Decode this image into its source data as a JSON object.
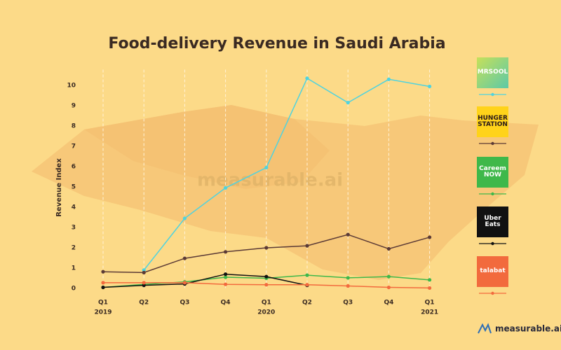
{
  "chart_data": {
    "type": "line",
    "title": "Food-delivery Revenue in Saudi Arabia",
    "y_label": "Revenue Index",
    "watermark": "measurable.ai",
    "brand": "measurable.ai",
    "categories": [
      "Q1",
      "Q2",
      "Q3",
      "Q4",
      "Q1",
      "Q2",
      "Q3",
      "Q4",
      "Q1"
    ],
    "year_labels": [
      "2019",
      null,
      null,
      null,
      "2020",
      null,
      null,
      null,
      "2021"
    ],
    "ylim": [
      0,
      10.5
    ],
    "yticks": [
      0,
      1,
      2,
      3,
      4,
      5,
      6,
      7,
      8,
      9,
      10
    ],
    "grid": true,
    "legend": "right",
    "series": [
      {
        "name": "MRSOOL",
        "color": "#4fd3df",
        "values": [
          null,
          0.9,
          3.45,
          4.95,
          5.95,
          10.35,
          9.15,
          10.3,
          9.95
        ]
      },
      {
        "name": "HUNGER STATION",
        "color": "#5b3a36",
        "values": [
          0.82,
          0.78,
          1.48,
          1.8,
          2.0,
          2.1,
          2.65,
          1.95,
          2.52
        ]
      },
      {
        "name": "Careem NOW",
        "color": "#3fb84a",
        "values": [
          0.05,
          0.2,
          0.32,
          0.55,
          0.5,
          0.65,
          0.52,
          0.58,
          0.42
        ]
      },
      {
        "name": "Uber Eats",
        "color": "#111111",
        "values": [
          0.05,
          0.15,
          0.22,
          0.7,
          0.58,
          0.15,
          null,
          null,
          null
        ]
      },
      {
        "name": "talabat",
        "color": "#f26a3d",
        "values": [
          0.28,
          0.28,
          0.28,
          0.2,
          0.18,
          0.18,
          0.12,
          0.05,
          0.02
        ]
      }
    ]
  }
}
